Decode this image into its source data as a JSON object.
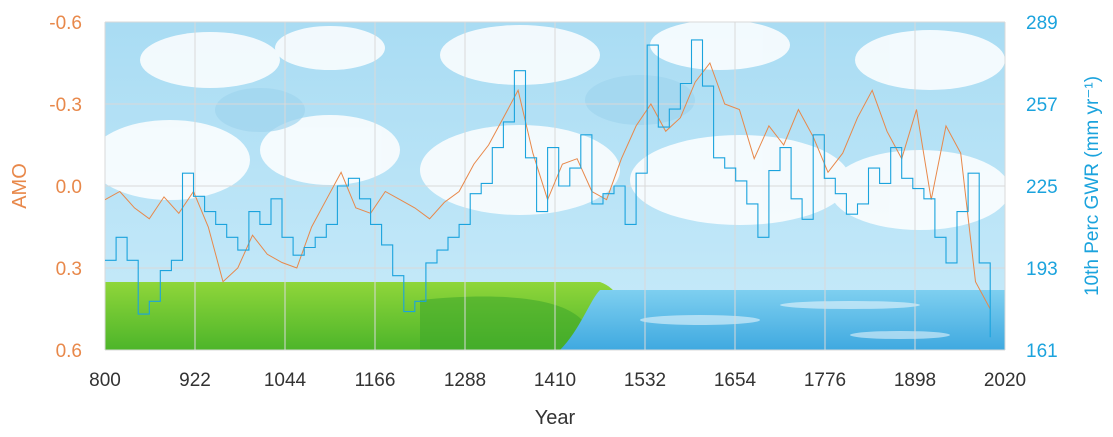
{
  "chart_data": {
    "type": "line",
    "xlabel": "Year",
    "ylabel_left": "AMO",
    "ylabel_right": "10th Perc GWR (mm yr⁻¹)",
    "xlim": [
      800,
      2020
    ],
    "ylim_left": [
      0.6,
      -0.6
    ],
    "ylim_right": [
      161,
      289
    ],
    "left_axis_inverted": true,
    "x_ticks": [
      "800",
      "922",
      "1044",
      "1166",
      "1288",
      "1410",
      "1532",
      "1654",
      "1776",
      "1898",
      "2020"
    ],
    "y_left_ticks": [
      "-0.6",
      "-0.3",
      "0.0",
      "0.3",
      "0.6"
    ],
    "y_right_ticks": [
      "289",
      "257",
      "225",
      "193",
      "161"
    ],
    "grid": true,
    "colors": {
      "amo": "#E8884A",
      "gwr": "#1BA3DD"
    },
    "series": [
      {
        "axis": "left",
        "x": [
          800,
          820,
          840,
          860,
          880,
          900,
          920,
          940,
          960,
          980,
          1000,
          1020,
          1040,
          1060,
          1080,
          1100,
          1120,
          1140,
          1160,
          1180,
          1200,
          1220,
          1240,
          1260,
          1280,
          1300,
          1320,
          1340,
          1360,
          1380,
          1400,
          1420,
          1440,
          1460,
          1480,
          1500,
          1520,
          1540,
          1560,
          1580,
          1600,
          1620,
          1640,
          1660,
          1680,
          1700,
          1720,
          1740,
          1760,
          1780,
          1800,
          1820,
          1840,
          1860,
          1880,
          1900,
          1920,
          1940,
          1960,
          1980,
          2000
        ],
        "values": [
          0.05,
          0.02,
          0.08,
          0.12,
          0.04,
          0.1,
          0.02,
          0.15,
          0.35,
          0.3,
          0.18,
          0.25,
          0.28,
          0.3,
          0.15,
          0.05,
          -0.05,
          0.08,
          0.1,
          0.02,
          0.05,
          0.08,
          0.12,
          0.06,
          0.02,
          -0.08,
          -0.15,
          -0.25,
          -0.35,
          -0.12,
          0.05,
          -0.08,
          -0.1,
          0.02,
          0.05,
          -0.1,
          -0.22,
          -0.3,
          -0.2,
          -0.25,
          -0.38,
          -0.45,
          -0.3,
          -0.28,
          -0.1,
          -0.22,
          -0.15,
          -0.28,
          -0.18,
          -0.05,
          -0.12,
          -0.25,
          -0.35,
          -0.2,
          -0.1,
          -0.28,
          0.05,
          -0.22,
          -0.12,
          0.35,
          0.45
        ]
      },
      {
        "axis": "right",
        "x": [
          800,
          815,
          830,
          845,
          860,
          875,
          890,
          905,
          920,
          935,
          950,
          965,
          980,
          995,
          1010,
          1025,
          1040,
          1055,
          1070,
          1085,
          1100,
          1115,
          1130,
          1145,
          1160,
          1175,
          1190,
          1205,
          1220,
          1235,
          1250,
          1265,
          1280,
          1295,
          1310,
          1325,
          1340,
          1355,
          1370,
          1385,
          1400,
          1415,
          1430,
          1445,
          1460,
          1475,
          1490,
          1505,
          1520,
          1535,
          1550,
          1565,
          1580,
          1595,
          1610,
          1625,
          1640,
          1655,
          1670,
          1685,
          1700,
          1715,
          1730,
          1745,
          1760,
          1775,
          1790,
          1805,
          1820,
          1835,
          1850,
          1865,
          1880,
          1895,
          1910,
          1925,
          1940,
          1955,
          1970,
          1985,
          2000
        ],
        "values": [
          196,
          205,
          196,
          175,
          180,
          192,
          196,
          230,
          221,
          215,
          210,
          205,
          200,
          215,
          210,
          220,
          205,
          198,
          201,
          205,
          210,
          225,
          228,
          220,
          210,
          202,
          190,
          176,
          180,
          195,
          200,
          205,
          210,
          222,
          226,
          240,
          250,
          270,
          236,
          215,
          240,
          225,
          232,
          245,
          218,
          222,
          225,
          210,
          230,
          280,
          248,
          255,
          265,
          282,
          264,
          236,
          232,
          227,
          218,
          205,
          231,
          240,
          220,
          212,
          245,
          228,
          222,
          214,
          218,
          232,
          226,
          240,
          228,
          224,
          220,
          205,
          195,
          215,
          230,
          195,
          166
        ]
      }
    ]
  }
}
